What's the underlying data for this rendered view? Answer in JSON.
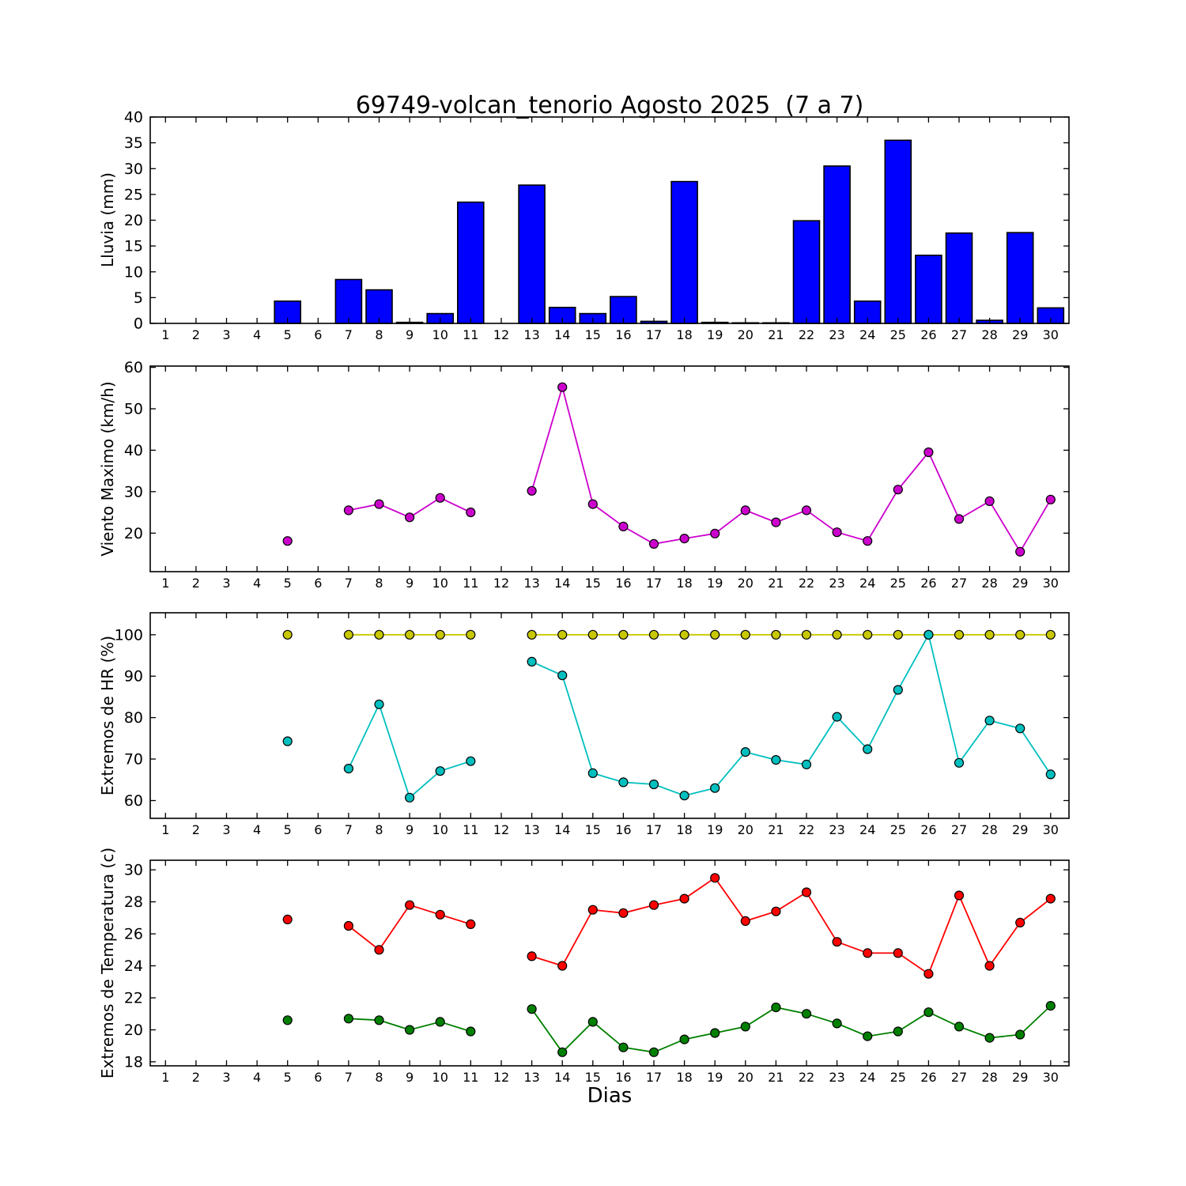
{
  "title": "69749-volcan_tenorio Agosto 2025  (7 a 7)",
  "x_axis": {
    "label": "Dias",
    "ticks": [
      1,
      2,
      3,
      4,
      5,
      6,
      7,
      8,
      9,
      10,
      11,
      12,
      13,
      14,
      15,
      16,
      17,
      18,
      19,
      20,
      21,
      22,
      23,
      24,
      25,
      26,
      27,
      28,
      29,
      30
    ]
  },
  "chart_data": [
    {
      "type": "bar",
      "name": "lluvia",
      "ylabel": "Lluvia (mm)",
      "ylim": [
        0,
        40
      ],
      "yticks": [
        0,
        5,
        10,
        15,
        20,
        25,
        30,
        35,
        40
      ],
      "color": "#0000ff",
      "x": [
        5,
        7,
        8,
        9,
        10,
        11,
        13,
        14,
        15,
        16,
        17,
        18,
        19,
        20,
        21,
        22,
        23,
        24,
        25,
        26,
        27,
        28,
        29,
        30
      ],
      "values": [
        4.3,
        8.5,
        6.5,
        0.2,
        1.9,
        23.5,
        26.8,
        3.1,
        1.9,
        5.2,
        0.4,
        27.5,
        0.2,
        0.1,
        0.1,
        19.9,
        30.5,
        4.3,
        35.5,
        13.2,
        17.5,
        0.6,
        17.6,
        3.0
      ]
    },
    {
      "type": "line",
      "name": "viento-maximo",
      "ylabel": "Viento Maximo (km/h)",
      "ylim": [
        10.7,
        60.3
      ],
      "yticks": [
        20,
        30,
        40,
        50,
        60
      ],
      "series": [
        {
          "name": "viento-max",
          "color": "#cc00cc",
          "x": [
            5,
            7,
            8,
            9,
            10,
            11,
            13,
            14,
            15,
            16,
            17,
            18,
            19,
            20,
            21,
            22,
            23,
            24,
            25,
            26,
            27,
            28,
            29,
            30
          ],
          "values": [
            18.1,
            25.5,
            27.0,
            23.8,
            28.5,
            25.0,
            30.2,
            55.2,
            27.0,
            21.6,
            17.4,
            18.7,
            19.9,
            25.5,
            22.6,
            25.5,
            20.2,
            18.1,
            30.5,
            39.5,
            23.4,
            27.7,
            15.5,
            28.1
          ]
        }
      ]
    },
    {
      "type": "line",
      "name": "extremos-hr",
      "ylabel": "Extremos de HR (%)",
      "ylim": [
        55.7,
        105.3
      ],
      "yticks": [
        60,
        70,
        80,
        90,
        100
      ],
      "series": [
        {
          "name": "hr-max",
          "color": "#c8c800",
          "x": [
            5,
            7,
            8,
            9,
            10,
            11,
            13,
            14,
            15,
            16,
            17,
            18,
            19,
            20,
            21,
            22,
            23,
            24,
            25,
            26,
            27,
            28,
            29,
            30
          ],
          "values": [
            100,
            100,
            100,
            100,
            100,
            100,
            100,
            100,
            100,
            100,
            100,
            100,
            100,
            100,
            100,
            100,
            100,
            100,
            100,
            100,
            100,
            100,
            100,
            100
          ]
        },
        {
          "name": "hr-min",
          "color": "#00bfbf",
          "x": [
            5,
            7,
            8,
            9,
            10,
            11,
            13,
            14,
            15,
            16,
            17,
            18,
            19,
            20,
            21,
            22,
            23,
            24,
            25,
            26,
            27,
            28,
            29,
            30
          ],
          "values": [
            74.3,
            67.7,
            83.2,
            60.7,
            67.1,
            69.5,
            93.5,
            90.2,
            66.6,
            64.4,
            63.9,
            61.2,
            63.0,
            71.7,
            69.8,
            68.7,
            80.2,
            72.4,
            86.7,
            100.0,
            69.1,
            79.3,
            77.4,
            66.3
          ]
        }
      ]
    },
    {
      "type": "line",
      "name": "extremos-temperatura",
      "ylabel": "Extremos de Temperatura (c)",
      "ylim": [
        17.75,
        30.6
      ],
      "yticks": [
        18,
        20,
        22,
        24,
        26,
        28,
        30
      ],
      "series": [
        {
          "name": "temp-max",
          "color": "#ff0000",
          "x": [
            5,
            7,
            8,
            9,
            10,
            11,
            13,
            14,
            15,
            16,
            17,
            18,
            19,
            20,
            21,
            22,
            23,
            24,
            25,
            26,
            27,
            28,
            29,
            30
          ],
          "values": [
            26.9,
            26.5,
            25.0,
            27.8,
            27.2,
            26.6,
            24.6,
            24.0,
            27.5,
            27.3,
            27.8,
            28.2,
            29.5,
            26.8,
            27.4,
            28.6,
            25.5,
            24.8,
            24.8,
            23.5,
            28.4,
            24.0,
            26.7,
            28.2
          ]
        },
        {
          "name": "temp-min",
          "color": "#008000",
          "x": [
            5,
            7,
            8,
            9,
            10,
            11,
            13,
            14,
            15,
            16,
            17,
            18,
            19,
            20,
            21,
            22,
            23,
            24,
            25,
            26,
            27,
            28,
            29,
            30
          ],
          "values": [
            20.6,
            20.7,
            20.6,
            20.0,
            20.5,
            19.9,
            21.3,
            18.6,
            20.5,
            18.9,
            18.6,
            19.4,
            19.8,
            20.2,
            21.4,
            21.0,
            20.4,
            19.6,
            19.9,
            21.1,
            20.2,
            19.5,
            19.7,
            21.5
          ]
        }
      ]
    }
  ]
}
